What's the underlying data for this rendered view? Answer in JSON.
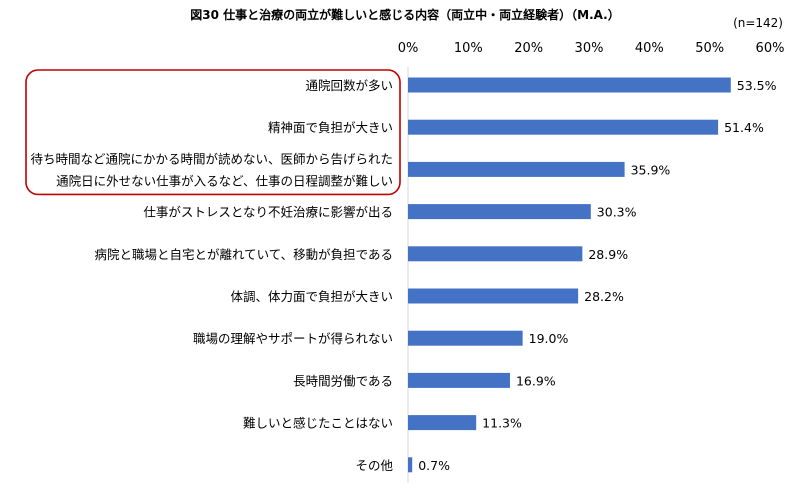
{
  "chart_data": {
    "type": "bar",
    "orientation": "horizontal",
    "title": "図30 仕事と治療の両立が難しいと感じる内容（両立中・両立経験者）（M.A.）",
    "n_label": "(n=142)",
    "xlim": [
      0,
      60
    ],
    "ticks": [
      "0%",
      "10%",
      "20%",
      "30%",
      "40%",
      "50%",
      "60%"
    ],
    "tick_values": [
      0,
      10,
      20,
      30,
      40,
      50,
      60
    ],
    "bar_color": "#4472c4",
    "highlight_color": "#c00000",
    "highlighted_categories": [
      0,
      1,
      2
    ],
    "categories": [
      [
        "通院回数が多い"
      ],
      [
        "精神面で負担が大きい"
      ],
      [
        "待ち時間など通院にかかる時間が読めない、医師から告げられた",
        "通院日に外せない仕事が入るなど、仕事の日程調整が難しい"
      ],
      [
        "仕事がストレスとなり不妊治療に影響が出る"
      ],
      [
        "病院と職場と自宅とが離れていて、移動が負担である"
      ],
      [
        "体調、体力面で負担が大きい"
      ],
      [
        "職場の理解やサポートが得られない"
      ],
      [
        "長時間労働である"
      ],
      [
        "難しいと感じたことはない"
      ],
      [
        "その他"
      ]
    ],
    "values": [
      53.5,
      51.4,
      35.9,
      30.3,
      28.9,
      28.2,
      19.0,
      16.9,
      11.3,
      0.7
    ],
    "value_labels": [
      "53.5%",
      "51.4%",
      "35.9%",
      "30.3%",
      "28.9%",
      "28.2%",
      "19.0%",
      "16.9%",
      "11.3%",
      "0.7%"
    ]
  }
}
